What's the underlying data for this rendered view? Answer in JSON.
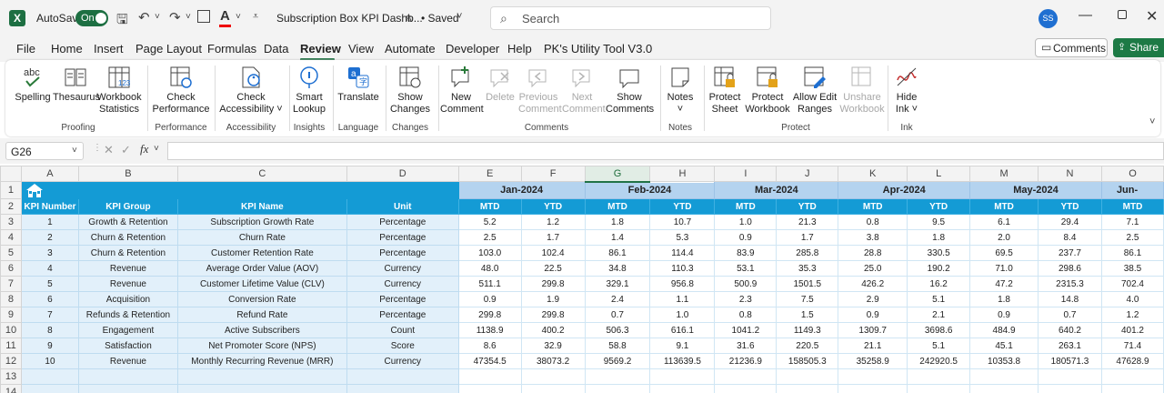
{
  "titlebar": {
    "app_icon": "excel-icon",
    "autosave_label": "AutoSave",
    "autosave_state": "On",
    "doc_title": "Subscription Box KPI Dashb...",
    "saved_status": "• Saved",
    "search_placeholder": "Search",
    "user_initials": "SS"
  },
  "menu": [
    "File",
    "Home",
    "Insert",
    "Page Layout",
    "Formulas",
    "Data",
    "Review",
    "View",
    "Automate",
    "Developer",
    "Help",
    "PK's Utility Tool V3.0"
  ],
  "menu_active": "Review",
  "comments_label": "Comments",
  "share_label": "Share",
  "ribbon": {
    "buttons": [
      {
        "id": "spelling",
        "label": "Spelling",
        "line2": "",
        "icon": "spelling-icon",
        "disabled": false
      },
      {
        "id": "thesaurus",
        "label": "Thesaurus",
        "line2": "",
        "icon": "thesaurus-icon",
        "disabled": false
      },
      {
        "id": "workbook-statistics",
        "label": "Workbook",
        "line2": "Statistics",
        "icon": "workbook-statistics-icon",
        "disabled": false
      },
      {
        "id": "check-performance",
        "label": "Check",
        "line2": "Performance",
        "icon": "check-performance-icon",
        "disabled": false
      },
      {
        "id": "check-accessibility",
        "label": "Check",
        "line2": "Accessibility ˅",
        "icon": "check-accessibility-icon",
        "disabled": false
      },
      {
        "id": "smart-lookup",
        "label": "Smart",
        "line2": "Lookup",
        "icon": "smart-lookup-icon",
        "disabled": false
      },
      {
        "id": "translate",
        "label": "Translate",
        "line2": "",
        "icon": "translate-icon",
        "disabled": false
      },
      {
        "id": "show-changes",
        "label": "Show",
        "line2": "Changes",
        "icon": "show-changes-icon",
        "disabled": false
      },
      {
        "id": "new-comment",
        "label": "New",
        "line2": "Comment",
        "icon": "new-comment-icon",
        "disabled": false
      },
      {
        "id": "delete-comment",
        "label": "Delete",
        "line2": "",
        "icon": "delete-comment-icon",
        "disabled": true
      },
      {
        "id": "previous-comment",
        "label": "Previous",
        "line2": "Comment",
        "icon": "previous-comment-icon",
        "disabled": true
      },
      {
        "id": "next-comment",
        "label": "Next",
        "line2": "Comment",
        "icon": "next-comment-icon",
        "disabled": true
      },
      {
        "id": "show-comments",
        "label": "Show",
        "line2": "Comments",
        "icon": "show-comments-icon",
        "disabled": false
      },
      {
        "id": "notes",
        "label": "Notes",
        "line2": "˅",
        "icon": "notes-icon",
        "disabled": false
      },
      {
        "id": "protect-sheet",
        "label": "Protect",
        "line2": "Sheet",
        "icon": "protect-sheet-icon",
        "disabled": false
      },
      {
        "id": "protect-workbook",
        "label": "Protect",
        "line2": "Workbook",
        "icon": "protect-workbook-icon",
        "disabled": false
      },
      {
        "id": "allow-edit-ranges",
        "label": "Allow Edit",
        "line2": "Ranges",
        "icon": "allow-edit-ranges-icon",
        "disabled": false
      },
      {
        "id": "unshare-workbook",
        "label": "Unshare",
        "line2": "Workbook",
        "icon": "unshare-workbook-icon",
        "disabled": true
      },
      {
        "id": "hide-ink",
        "label": "Hide",
        "line2": "Ink ˅",
        "icon": "hide-ink-icon",
        "disabled": false
      }
    ],
    "groups": [
      "Proofing",
      "Performance",
      "Accessibility",
      "Insights",
      "Language",
      "Changes",
      "Comments",
      "Notes",
      "Protect",
      "Ink"
    ]
  },
  "formula_bar": {
    "name_box": "G26",
    "fx_label": "fx",
    "value": ""
  },
  "sheet": {
    "selected_column": "G",
    "col_letters": [
      "A",
      "B",
      "C",
      "D",
      "E",
      "F",
      "G",
      "H",
      "I",
      "J",
      "K",
      "L",
      "M",
      "N",
      "O"
    ],
    "row_numbers": [
      "1",
      "2",
      "3",
      "4",
      "5",
      "6",
      "7",
      "8",
      "9",
      "10",
      "11",
      "12",
      "13",
      "14"
    ],
    "months": [
      "Jan-2024",
      "Feb-2024",
      "Mar-2024",
      "Apr-2024",
      "May-2024",
      "Jun-"
    ],
    "headers": [
      "KPI Number",
      "KPI Group",
      "KPI Name",
      "Unit"
    ],
    "mtd_label": "MTD",
    "ytd_label": "YTD",
    "rows": [
      [
        "1",
        "Growth & Retention",
        "Subscription Growth Rate",
        "Percentage",
        "5.2",
        "1.2",
        "1.8",
        "10.7",
        "1.0",
        "21.3",
        "0.8",
        "9.5",
        "6.1",
        "29.4",
        "7.1"
      ],
      [
        "2",
        "Churn & Retention",
        "Churn Rate",
        "Percentage",
        "2.5",
        "1.7",
        "1.4",
        "5.3",
        "0.9",
        "1.7",
        "3.8",
        "1.8",
        "2.0",
        "8.4",
        "2.5"
      ],
      [
        "3",
        "Churn & Retention",
        "Customer Retention Rate",
        "Percentage",
        "103.0",
        "102.4",
        "86.1",
        "114.4",
        "83.9",
        "285.8",
        "28.8",
        "330.5",
        "69.5",
        "237.7",
        "86.1"
      ],
      [
        "4",
        "Revenue",
        "Average Order Value (AOV)",
        "Currency",
        "48.0",
        "22.5",
        "34.8",
        "110.3",
        "53.1",
        "35.3",
        "25.0",
        "190.2",
        "71.0",
        "298.6",
        "38.5"
      ],
      [
        "5",
        "Revenue",
        "Customer Lifetime Value (CLV)",
        "Currency",
        "511.1",
        "299.8",
        "329.1",
        "956.8",
        "500.9",
        "1501.5",
        "426.2",
        "16.2",
        "47.2",
        "2315.3",
        "702.4"
      ],
      [
        "6",
        "Acquisition",
        "Conversion Rate",
        "Percentage",
        "0.9",
        "1.9",
        "2.4",
        "1.1",
        "2.3",
        "7.5",
        "2.9",
        "5.1",
        "1.8",
        "14.8",
        "4.0"
      ],
      [
        "7",
        "Refunds & Retention",
        "Refund Rate",
        "Percentage",
        "299.8",
        "299.8",
        "0.7",
        "1.0",
        "0.8",
        "1.5",
        "0.9",
        "2.1",
        "0.9",
        "0.7",
        "1.2"
      ],
      [
        "8",
        "Engagement",
        "Active Subscribers",
        "Count",
        "1138.9",
        "400.2",
        "506.3",
        "616.1",
        "1041.2",
        "1149.3",
        "1309.7",
        "3698.6",
        "484.9",
        "640.2",
        "401.2"
      ],
      [
        "9",
        "Satisfaction",
        "Net Promoter Score (NPS)",
        "Score",
        "8.6",
        "32.9",
        "58.8",
        "9.1",
        "31.6",
        "220.5",
        "21.1",
        "5.1",
        "45.1",
        "263.1",
        "71.4"
      ],
      [
        "10",
        "Revenue",
        "Monthly Recurring Revenue (MRR)",
        "Currency",
        "47354.5",
        "38073.2",
        "9569.2",
        "113639.5",
        "21236.9",
        "158505.3",
        "35258.9",
        "242920.5",
        "10353.8",
        "180571.3",
        "47628.9"
      ]
    ]
  },
  "colors": {
    "excel_green": "#217346",
    "header_blue": "#149bd5",
    "month_blue": "#b4d3ef",
    "label_tint": "#e2f0fa"
  }
}
